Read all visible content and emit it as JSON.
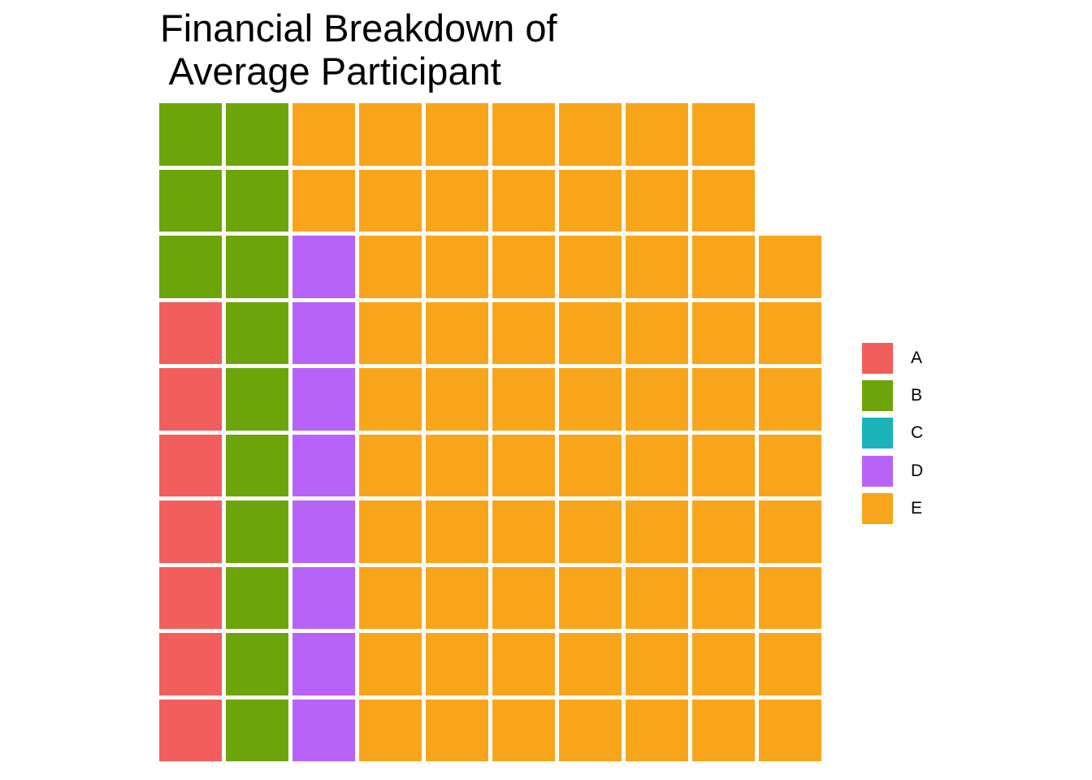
{
  "title": {
    "line1": "Financial Breakdown of",
    "line2": " Average Participant"
  },
  "colors": {
    "A": "#F15E5B",
    "B": "#6CA50A",
    "C": "#1CB2BA",
    "D": "#B863F8",
    "E": "#F9A51B"
  },
  "legend": {
    "position": "right",
    "items": [
      {
        "label": "A",
        "color": "#F15E5B"
      },
      {
        "label": "B",
        "color": "#6CA50A"
      },
      {
        "label": "C",
        "color": "#1CB2BA"
      },
      {
        "label": "D",
        "color": "#B863F8"
      },
      {
        "label": "E",
        "color": "#F9A51B"
      }
    ]
  },
  "chart_data": {
    "type": "waffle",
    "title": "Financial Breakdown of\n Average Participant",
    "categories": [
      "A",
      "B",
      "C",
      "D",
      "E"
    ],
    "values": [
      7,
      13,
      0,
      8,
      70
    ],
    "total_squares": 98,
    "grid": {
      "rows": 10,
      "cols": 10,
      "fill_direction": "column-wise, bottom-to-top, starting bottom-left",
      "gap_color": "#ffffff"
    },
    "rows_top_to_bottom": [
      "BBEEEEEEE.",
      "BBEEEEEEE.",
      "BBDEEEEEEE",
      "ABDEEEEEEE",
      "ABDEEEEEEE",
      "ABDEEEEEEE",
      "ABDEEEEEEE",
      "ABDEEEEEEE",
      "ABDEEEEEEE",
      "ABDEEEEEEE"
    ],
    "legend_entries": [
      "A",
      "B",
      "C",
      "D",
      "E"
    ],
    "legend_position": "right"
  }
}
